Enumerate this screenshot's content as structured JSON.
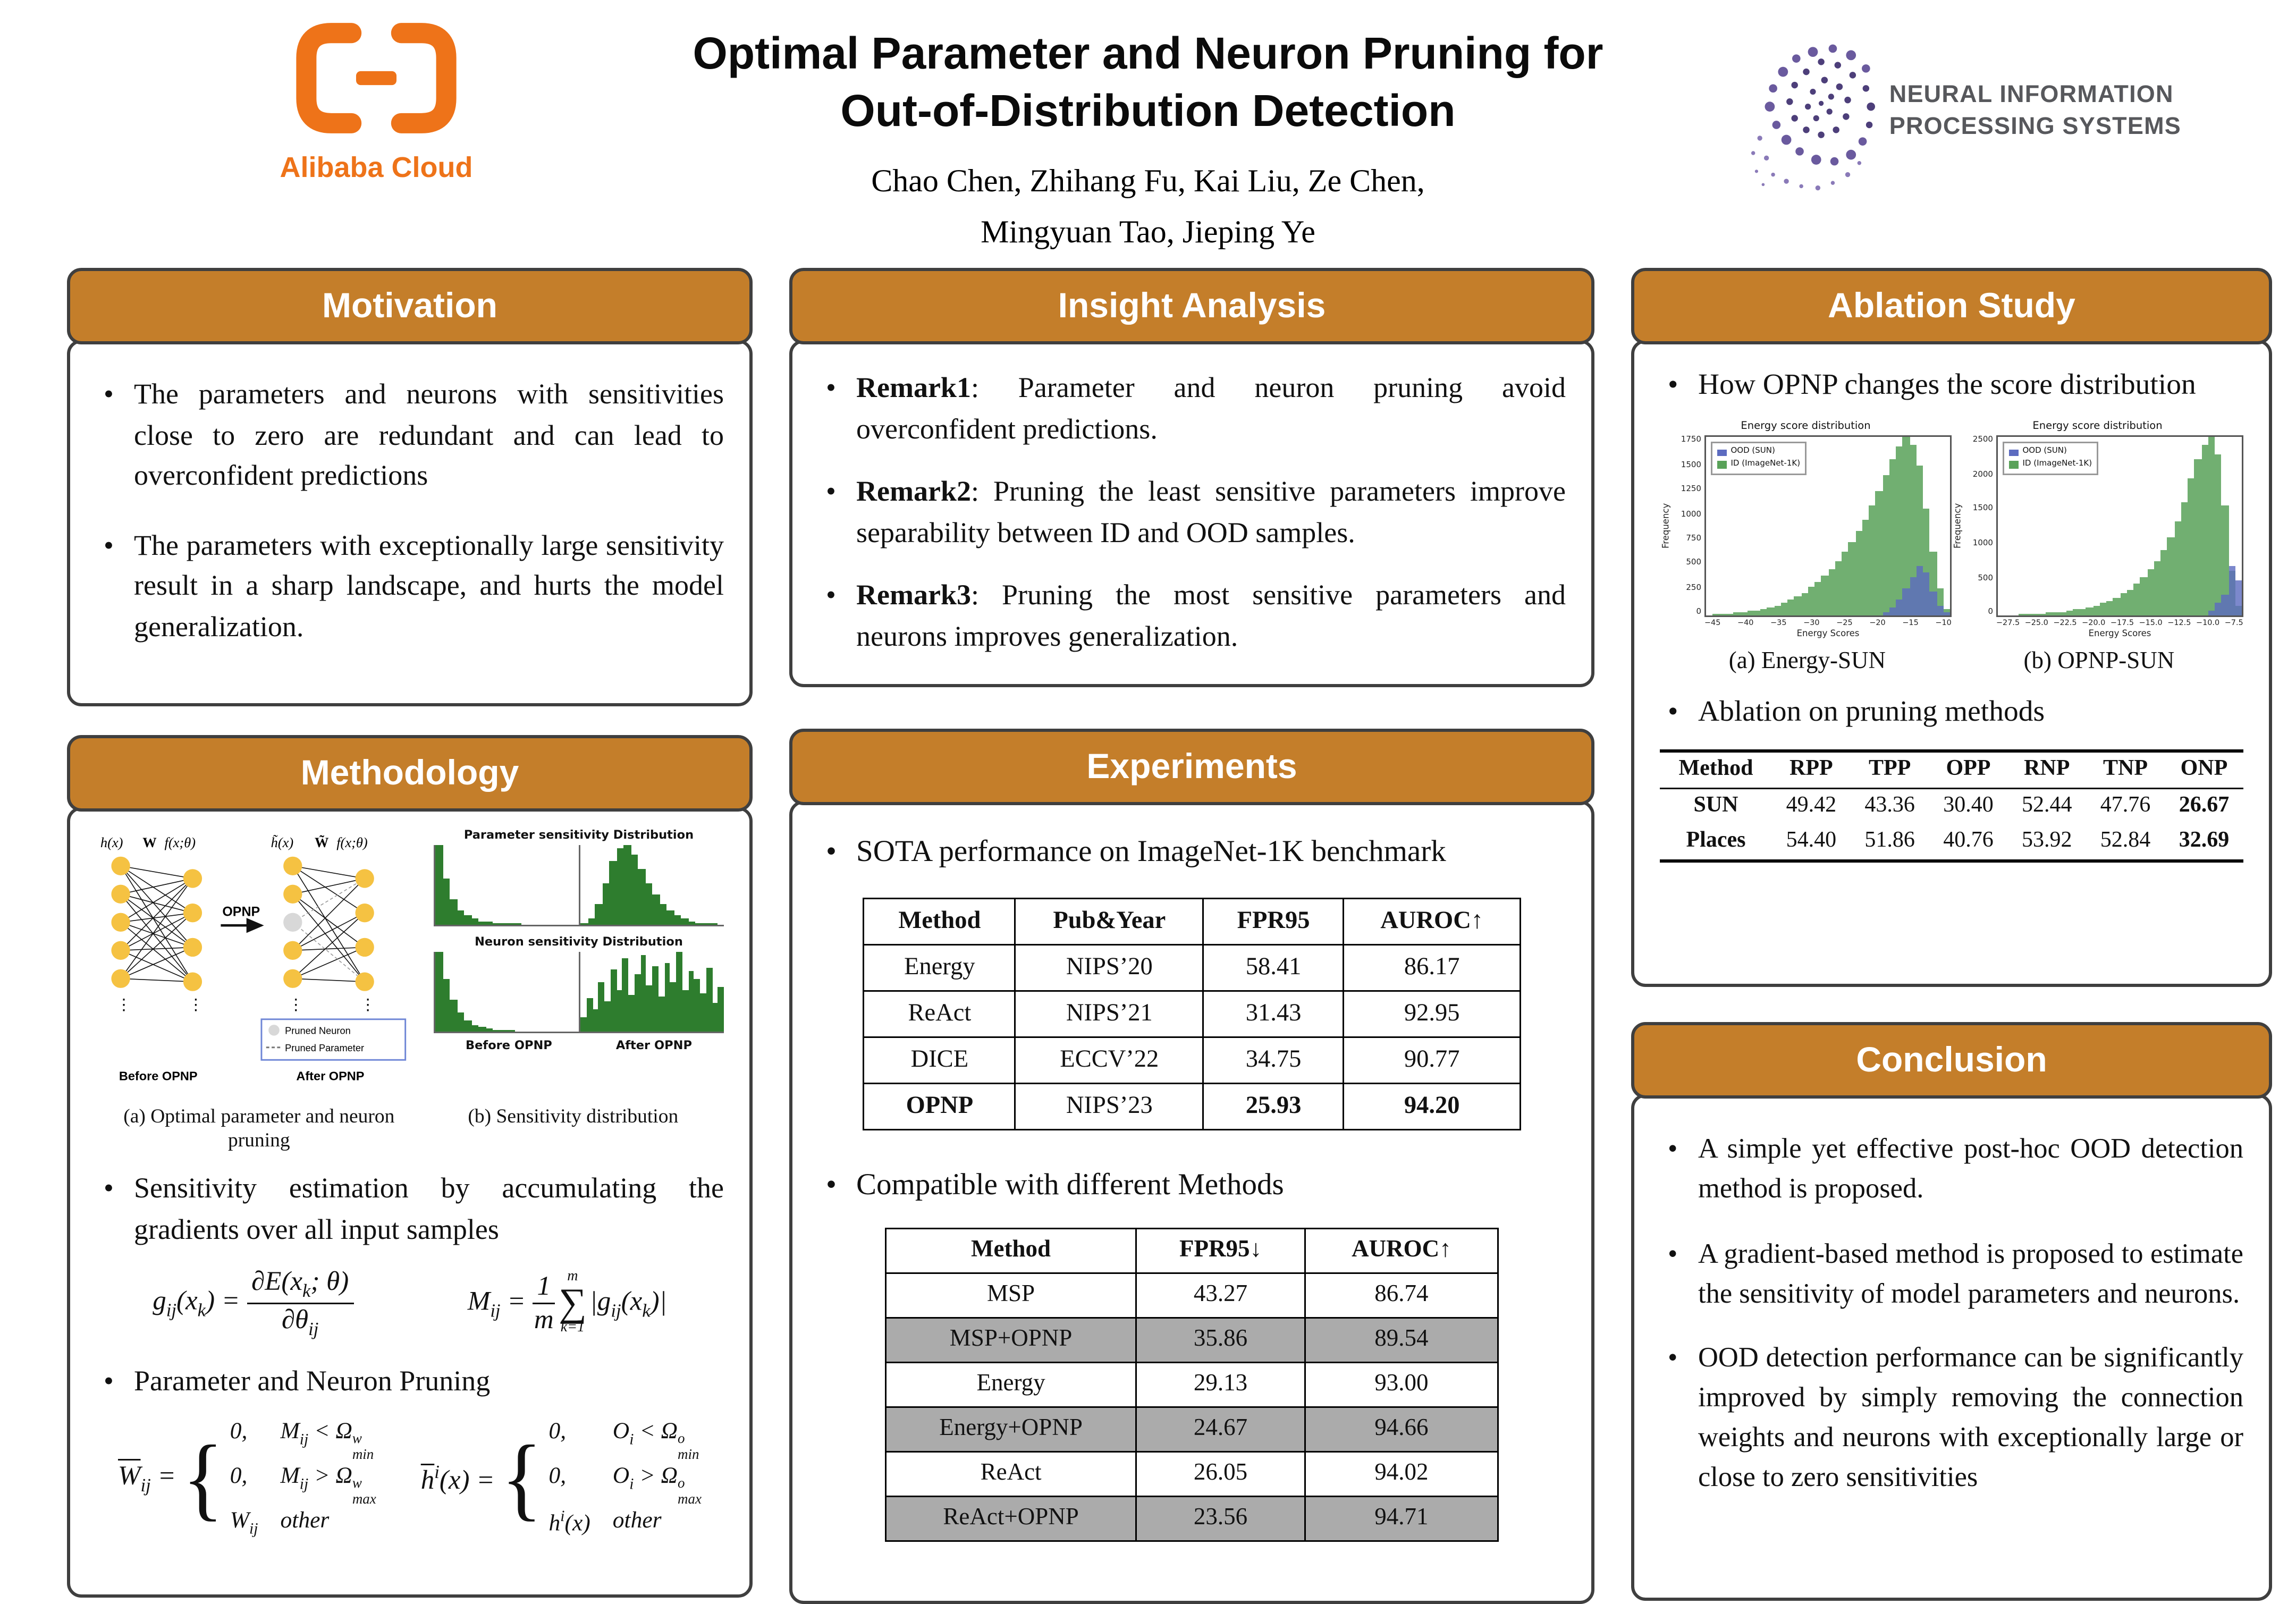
{
  "colors": {
    "accent_orange": "#c47e2a",
    "alibaba_orange": "#ee7319",
    "neurips_purple": "#6a5a9e",
    "table_gray": "#ababab",
    "hist_green": "#59a259",
    "hist_blue": "#5c6bc0",
    "mini_green": "#2e7d2e"
  },
  "header": {
    "title_line1": "Optimal Parameter and Neuron Pruning for",
    "title_line2": "Out-of-Distribution Detection",
    "authors_line1": "Chao Chen,  Zhihang Fu,  Kai Liu, Ze Chen,",
    "authors_line2": "Mingyuan Tao,   Jieping Ye",
    "alibaba_wordmark": "Alibaba Cloud",
    "neurips_line1": "NEURAL INFORMATION",
    "neurips_line2": "PROCESSING SYSTEMS"
  },
  "sections": {
    "motivation": {
      "title": "Motivation",
      "bullets": [
        "The parameters and neurons with sensitivities close to zero are redundant and can lead to overconfident predictions",
        "The parameters with exceptionally large sensitivity result in a sharp landscape, and hurts the model generalization."
      ]
    },
    "insight": {
      "title": "Insight Analysis",
      "bullets": [
        {
          "bold": "Remark1",
          "text": ": Parameter and neuron pruning avoid overconfident predictions."
        },
        {
          "bold": "Remark2",
          "text": ": Pruning the least sensitive parameters improve separability between ID and OOD samples."
        },
        {
          "bold": "Remark3",
          "text": ": Pruning the most sensitive parameters and neurons improves generalization."
        }
      ]
    },
    "methodology": {
      "title": "Methodology",
      "diagram": {
        "hx": "h(x)",
        "w": "W",
        "fx": "f(x;θ)",
        "hx2": "h̃(x)",
        "w2": "W̃",
        "fx2": "f(x;θ)",
        "opnp": "OPNP",
        "legend_neuron": "Pruned Neuron",
        "legend_param": "Pruned Parameter",
        "before": "Before OPNP",
        "after": "After OPNP",
        "caption_a": "(a) Optimal parameter and neuron pruning",
        "caption_b": "(b) Sensitivity distribution",
        "param_title": "Parameter sensitivity Distribution",
        "neuron_title": "Neuron sensitivity Distribution",
        "before2": "Before OPNP",
        "after2": "After OPNP"
      },
      "bullet1": "Sensitivity estimation by accumulating the gradients over all input samples",
      "bullet2": "Parameter and Neuron Pruning",
      "formula_g": "g<sub>ij</sub>(x<sub>k</sub>) = <span class='frac'><span>∂E(x<sub>k</sub>; θ)</span><span>∂θ<sub>ij</sub></span></span>",
      "formula_m": "M<sub>ij</sub> = <span class='frac'><span>1</span><span>m</span></span><span class='sum'><span>m</span><span>∑</span><span>k=1</span></span>|g<sub>ij</sub>(x<sub>k</sub>)|",
      "prune_w": {
        "lhs": "<span class='ol'>W</span><sub>ij</sub> =",
        "rows": [
          [
            "0,",
            "M<sub>ij</sub> &lt; Ω<span class='ss'><span>w</span><span>min</span></span>"
          ],
          [
            "0,",
            "M<sub>ij</sub> &gt; Ω<span class='ss'><span>w</span><span>max</span></span>"
          ],
          [
            "W<sub>ij</sub>",
            "other"
          ]
        ]
      },
      "prune_h": {
        "lhs": "<span class='ol'>h</span><sup>i</sup>(x) =",
        "rows": [
          [
            "0,",
            "O<sub>i</sub> &lt; Ω<span class='ss'><span>o</span><span>min</span></span>"
          ],
          [
            "0,",
            "O<sub>i</sub> &gt; Ω<span class='ss'><span>o</span><span>max</span></span>"
          ],
          [
            "h<sup>i</sup>(x)",
            "other"
          ]
        ]
      }
    },
    "experiments": {
      "title": "Experiments",
      "bullet1": "SOTA performance on ImageNet-1K benchmark",
      "table1": {
        "headers": [
          "Method",
          "Pub&Year",
          "FPR95",
          "AUROC↑"
        ],
        "rows": [
          [
            "Energy",
            "NIPS’20",
            "58.41",
            "86.17"
          ],
          [
            "ReAct",
            "NIPS’21",
            "31.43",
            "92.95"
          ],
          [
            "DICE",
            "ECCV’22",
            "34.75",
            "90.77"
          ],
          [
            "OPNP",
            "NIPS’23",
            "25.93",
            "94.20"
          ]
        ]
      },
      "bullet2": "Compatible with different Methods",
      "table2": {
        "headers": [
          "Method",
          "FPR95↓",
          "AUROC↑"
        ],
        "rows": [
          [
            "MSP",
            "43.27",
            "86.74"
          ],
          [
            "MSP+OPNP",
            "35.86",
            "89.54"
          ],
          [
            "Energy",
            "29.13",
            "93.00"
          ],
          [
            "Energy+OPNP",
            "24.67",
            "94.66"
          ],
          [
            "ReAct",
            "26.05",
            "94.02"
          ],
          [
            "ReAct+OPNP",
            "23.56",
            "94.71"
          ]
        ]
      }
    },
    "ablation": {
      "title": "Ablation Study",
      "bullet1": "How OPNP changes the score distribution",
      "caption_a": "(a)  Energy-SUN",
      "caption_b": "(b)  OPNP-SUN",
      "bullet2": "Ablation on pruning methods",
      "table": {
        "headers": [
          "Method",
          "RPP",
          "TPP",
          "OPP",
          "RNP",
          "TNP",
          "ONP"
        ],
        "rows": [
          [
            "SUN",
            "49.42",
            "43.36",
            "30.40",
            "52.44",
            "47.76",
            "26.67"
          ],
          [
            "Places",
            "54.40",
            "51.86",
            "40.76",
            "53.92",
            "52.84",
            "32.69"
          ]
        ]
      }
    },
    "conclusion": {
      "title": "Conclusion",
      "bullets": [
        "A simple yet effective post-hoc OOD detection method is proposed.",
        "A gradient-based method is proposed to estimate the sensitivity of model parameters and neurons.",
        "OOD detection performance can be significantly improved by simply removing the connection weights and neurons with exceptionally large or close to zero sensitivities"
      ]
    }
  },
  "chart_data": [
    {
      "id": "energy_sun",
      "type": "bar",
      "subtype": "histogram",
      "title": "Energy score distribution",
      "xlabel": "Energy Scores",
      "ylabel": "Frequency",
      "legend": [
        "OOD (SUN)",
        "ID (ImageNet-1K)"
      ],
      "legend_position": "upper left",
      "grid": false,
      "xlim": [
        -47,
        -8
      ],
      "ylim": [
        0,
        1850
      ],
      "values_unit": "percent_of_max",
      "yticks": [
        "1750",
        "1500",
        "1250",
        "1000",
        "750",
        "500",
        "250",
        "0"
      ],
      "xticks": [
        "−45",
        "−40",
        "−35",
        "−30",
        "−25",
        "−20",
        "−15",
        "−10"
      ],
      "series": [
        {
          "name": "ID (ImageNet-1K)",
          "color": "#59a259",
          "opacity": 0.85,
          "values": [
            0.5,
            0.7,
            1,
            1.3,
            1.6,
            2,
            2.5,
            3,
            4,
            5,
            6,
            7.5,
            9,
            11,
            13,
            16,
            19,
            22.5,
            26.5,
            31,
            36,
            41.5,
            47.5,
            54,
            62,
            70,
            79,
            88,
            95,
            100,
            96,
            84,
            60,
            36,
            15,
            4
          ]
        },
        {
          "name": "OOD (SUN)",
          "color": "#5c6bc0",
          "opacity": 0.8,
          "values": [
            0,
            0,
            0,
            0,
            0,
            0,
            0,
            0,
            0,
            0,
            0,
            0,
            0,
            0,
            0,
            0,
            0,
            0,
            0,
            0,
            0,
            0,
            0,
            0,
            0,
            0,
            2,
            5,
            9,
            15,
            22,
            28,
            24,
            14,
            6,
            2
          ]
        }
      ]
    },
    {
      "id": "opnp_sun",
      "type": "bar",
      "subtype": "histogram",
      "title": "Energy score distribution",
      "xlabel": "Energy Scores",
      "ylabel": "Frequency",
      "legend": [
        "OOD (SUN)",
        "ID (ImageNet-1K)"
      ],
      "legend_position": "upper left",
      "grid": false,
      "xlim": [
        -28.5,
        -6.5
      ],
      "ylim": [
        0,
        2800
      ],
      "values_unit": "percent_of_max",
      "yticks": [
        "2500",
        "2000",
        "1500",
        "1000",
        "500",
        "0"
      ],
      "xticks": [
        "−27.5",
        "−25.0",
        "−22.5",
        "−20.0",
        "−17.5",
        "−15.0",
        "−12.5",
        "−10.0",
        "−7.5"
      ],
      "series": [
        {
          "name": "ID (ImageNet-1K)",
          "color": "#59a259",
          "opacity": 0.85,
          "values": [
            0.3,
            0.4,
            0.5,
            0.7,
            0.9,
            1.1,
            1.4,
            1.7,
            2,
            2.4,
            2.9,
            3.5,
            4.2,
            5,
            6,
            7.2,
            8.6,
            10.3,
            12.4,
            14.9,
            17.8,
            21.4,
            25.7,
            30.8,
            37,
            44.4,
            53.3,
            64,
            76.8,
            88,
            96,
            100,
            90,
            62,
            25,
            6
          ]
        },
        {
          "name": "OOD (SUN)",
          "color": "#5c6bc0",
          "opacity": 0.8,
          "values": [
            0,
            0,
            0,
            0,
            0,
            0,
            0,
            0,
            0,
            0,
            0,
            0,
            0,
            0,
            0,
            0,
            0,
            0,
            0,
            0,
            0,
            0,
            0,
            0,
            0,
            0,
            0,
            0,
            0,
            0,
            0,
            3,
            7,
            12,
            28,
            20
          ]
        }
      ]
    },
    {
      "id": "param_sens_before",
      "type": "bar",
      "subtype": "histogram",
      "title": "Parameter sensitivity Distribution (Before OPNP)",
      "values_unit": "percent_of_max",
      "series": [
        {
          "name": "sensitivity",
          "color": "#2e7d2e",
          "opacity": 1,
          "values": [
            100,
            58,
            32,
            19,
            12,
            8,
            5,
            3.5,
            2.5,
            2,
            1.5,
            1.2,
            1,
            0.8,
            0.6,
            0.5,
            0.4,
            0.3,
            0.2,
            0.2
          ]
        }
      ]
    },
    {
      "id": "param_sens_after",
      "type": "bar",
      "subtype": "histogram",
      "title": "Parameter sensitivity Distribution (After OPNP)",
      "values_unit": "percent_of_max",
      "series": [
        {
          "name": "sensitivity",
          "color": "#2e7d2e",
          "opacity": 1,
          "values": [
            2,
            9,
            26,
            52,
            80,
            97,
            100,
            88,
            70,
            53,
            38,
            27,
            18,
            12,
            8,
            5,
            3,
            2,
            1.2,
            0.8
          ]
        }
      ]
    },
    {
      "id": "neuron_sens_before",
      "type": "bar",
      "subtype": "histogram",
      "title": "Neuron sensitivity Distribution (Before OPNP)",
      "values_unit": "percent_of_max",
      "series": [
        {
          "name": "sensitivity",
          "color": "#2e7d2e",
          "opacity": 1,
          "values": [
            100,
            66,
            40,
            24,
            15,
            9,
            6,
            4,
            2.8,
            2,
            1.4,
            1,
            0.8,
            0.6,
            0.4,
            0.3,
            0.3,
            0.2,
            0.2,
            0.1
          ]
        }
      ]
    },
    {
      "id": "neuron_sens_after",
      "type": "bar",
      "subtype": "histogram",
      "title": "Neuron sensitivity Distribution (After OPNP)",
      "values_unit": "percent_of_max",
      "series": [
        {
          "name": "sensitivity",
          "color": "#2e7d2e",
          "opacity": 1,
          "values": [
            18,
            42,
            28,
            62,
            38,
            78,
            52,
            92,
            47,
            72,
            96,
            58,
            82,
            44,
            86,
            63,
            100,
            52,
            76,
            66,
            48,
            81,
            36,
            57
          ]
        }
      ]
    }
  ]
}
